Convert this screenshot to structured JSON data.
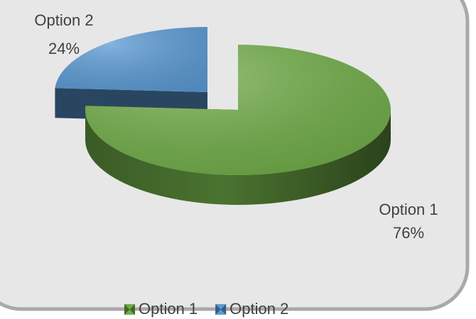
{
  "chart_data": {
    "type": "pie",
    "categories": [
      "Option 1",
      "Option 2"
    ],
    "values": [
      76,
      24
    ],
    "value_labels": [
      "76%",
      "24%"
    ],
    "colors": [
      "#70ad47",
      "#5b9bd5"
    ],
    "legend": "bottom"
  }
}
